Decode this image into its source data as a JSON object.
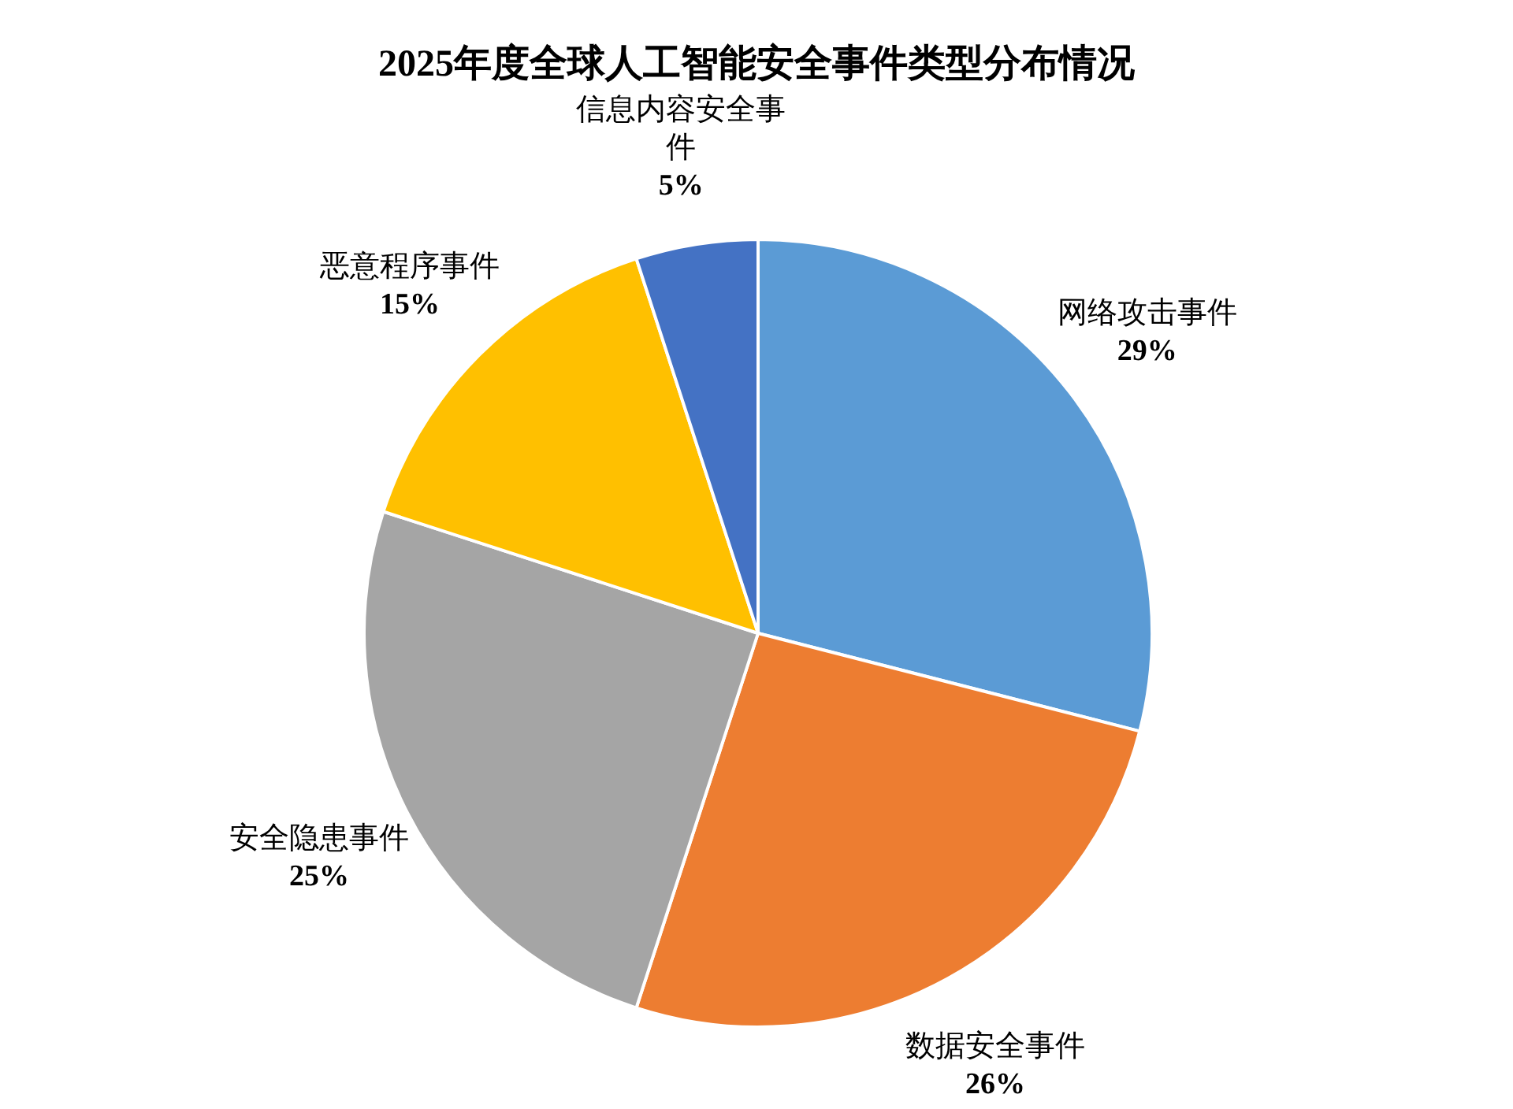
{
  "chart_data": {
    "type": "pie",
    "title": "2025年度全球人工智能安全事件类型分布情况",
    "categories": [
      "网络攻击事件",
      "数据安全事件",
      "安全隐患事件",
      "恶意程序事件",
      "信息内容安全事件"
    ],
    "values": [
      29,
      26,
      25,
      15,
      5
    ],
    "value_labels": [
      "29%",
      "26%",
      "25%",
      "15%",
      "5%"
    ],
    "colors": [
      "#5b9bd5",
      "#ed7d31",
      "#a5a5a5",
      "#ffc000",
      "#4472c4"
    ]
  }
}
